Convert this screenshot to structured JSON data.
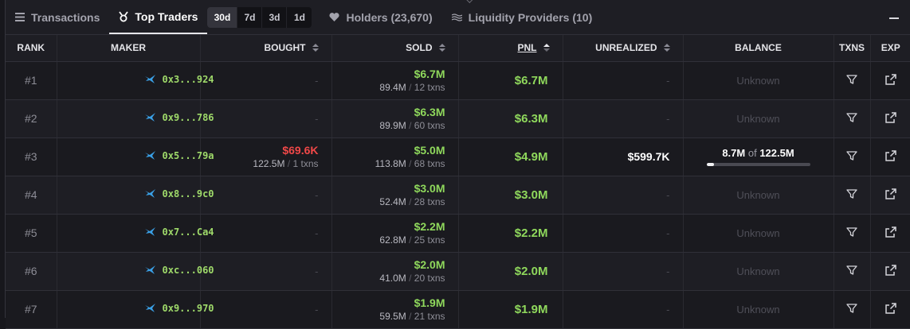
{
  "tabs": {
    "transactions": "Transactions",
    "top_traders": "Top Traders",
    "holders": "Holders (23,670)",
    "liquidity": "Liquidity Providers (10)",
    "periods": [
      "30d",
      "7d",
      "3d",
      "1d"
    ],
    "selected_period": "30d"
  },
  "columns": {
    "rank": "RANK",
    "maker": "MAKER",
    "bought": "BOUGHT",
    "sold": "SOLD",
    "pnl": "PNL",
    "unrealized": "UNREALIZED",
    "balance": "BALANCE",
    "txns": "TXNS",
    "exp": "EXP"
  },
  "balance_of_word": "of",
  "colors": {
    "profit": "#8fd85c",
    "loss": "#f04848",
    "maker_address": "#9fda6a",
    "maker_icon": "#3aa0e6"
  },
  "rows": [
    {
      "rank": "#1",
      "maker": "0x3...924",
      "bought": null,
      "sold": {
        "usd": "$6.7M",
        "amount": "89.4M",
        "txns": "12 txns"
      },
      "pnl": "$6.7M",
      "unrealized": "-",
      "balance": {
        "type": "unknown",
        "text": "Unknown"
      }
    },
    {
      "rank": "#2",
      "maker": "0x9...786",
      "bought": null,
      "sold": {
        "usd": "$6.3M",
        "amount": "89.9M",
        "txns": "60 txns"
      },
      "pnl": "$6.3M",
      "unrealized": "-",
      "balance": {
        "type": "unknown",
        "text": "Unknown"
      }
    },
    {
      "rank": "#3",
      "maker": "0x5...79a",
      "bought": {
        "usd": "$69.6K",
        "amount": "122.5M",
        "txns": "1 txns"
      },
      "sold": {
        "usd": "$5.0M",
        "amount": "113.8M",
        "txns": "68 txns"
      },
      "pnl": "$4.9M",
      "unrealized": "$599.7K",
      "balance": {
        "type": "bar",
        "held": "8.7M",
        "total": "122.5M",
        "fraction": 0.071
      }
    },
    {
      "rank": "#4",
      "maker": "0x8...9c0",
      "bought": null,
      "sold": {
        "usd": "$3.0M",
        "amount": "52.4M",
        "txns": "28 txns"
      },
      "pnl": "$3.0M",
      "unrealized": "-",
      "balance": {
        "type": "unknown",
        "text": "Unknown"
      }
    },
    {
      "rank": "#5",
      "maker": "0x7...Ca4",
      "bought": null,
      "sold": {
        "usd": "$2.2M",
        "amount": "62.8M",
        "txns": "25 txns"
      },
      "pnl": "$2.2M",
      "unrealized": "-",
      "balance": {
        "type": "unknown",
        "text": "Unknown"
      }
    },
    {
      "rank": "#6",
      "maker": "0xc...060",
      "bought": null,
      "sold": {
        "usd": "$2.0M",
        "amount": "41.0M",
        "txns": "20 txns"
      },
      "pnl": "$2.0M",
      "unrealized": "-",
      "balance": {
        "type": "unknown",
        "text": "Unknown"
      }
    },
    {
      "rank": "#7",
      "maker": "0x9...970",
      "bought": null,
      "sold": {
        "usd": "$1.9M",
        "amount": "59.5M",
        "txns": "21 txns"
      },
      "pnl": "$1.9M",
      "unrealized": "-",
      "balance": {
        "type": "unknown",
        "text": "Unknown"
      }
    }
  ]
}
